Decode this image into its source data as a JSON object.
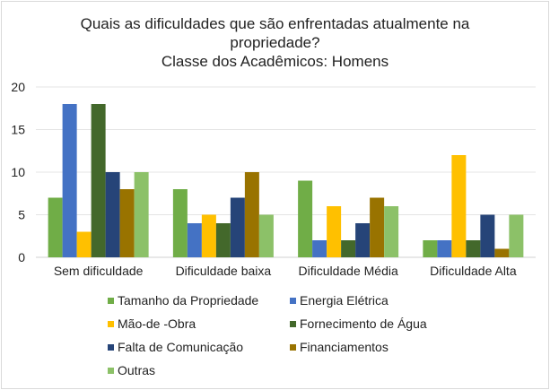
{
  "chart_data": {
    "type": "bar",
    "title": "Quais as dificuldades que são enfrentadas atualmente na propriedade? Classe dos Acadêmicos: Homens",
    "title_lines": [
      "Quais as dificuldades que são enfrentadas atualmente na",
      "propriedade?",
      "Classe dos Acadêmicos: Homens"
    ],
    "xlabel": "",
    "ylabel": "",
    "ylim": [
      0,
      20
    ],
    "yticks": [
      0,
      5,
      10,
      15,
      20
    ],
    "grid": true,
    "legend_position": "bottom",
    "categories": [
      "Sem dificuldade",
      "Dificuldade baixa",
      "Dificuldade Média",
      "Dificuldade Alta"
    ],
    "series": [
      {
        "name": "Tamanho da Propriedade",
        "color": "#70AD47",
        "values": [
          7,
          8,
          9,
          2
        ]
      },
      {
        "name": "Energia Elétrica",
        "color": "#4472C4",
        "values": [
          18,
          4,
          2,
          2
        ]
      },
      {
        "name": "Mão-de -Obra",
        "color": "#FFC000",
        "values": [
          3,
          5,
          6,
          12
        ]
      },
      {
        "name": "Fornecimento de Água",
        "color": "#43682B",
        "values": [
          18,
          4,
          2,
          2
        ]
      },
      {
        "name": "Falta de Comunicação",
        "color": "#264478",
        "values": [
          10,
          7,
          4,
          5
        ]
      },
      {
        "name": "Financiamentos",
        "color": "#997300",
        "values": [
          8,
          10,
          7,
          1
        ]
      },
      {
        "name": "Outras",
        "color": "#8CC168",
        "values": [
          10,
          5,
          6,
          5
        ]
      }
    ]
  }
}
